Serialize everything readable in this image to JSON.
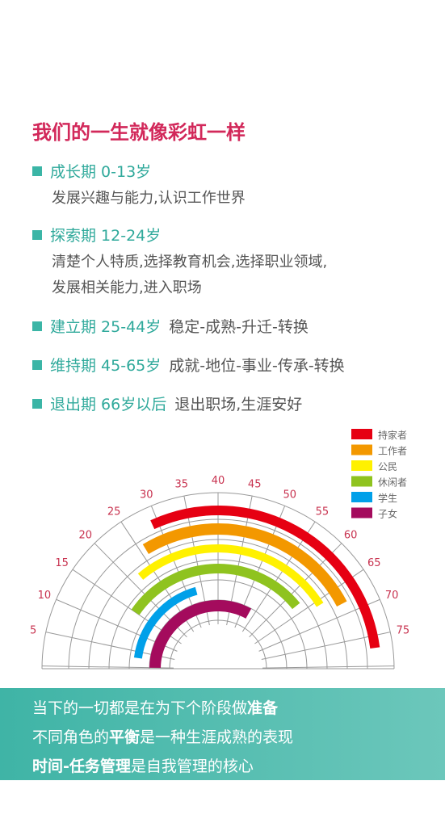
{
  "title": "我们的一生就像彩虹一样",
  "stages": [
    {
      "name": "成长期 0-13岁",
      "lines": [
        "发展兴趣与能力,认识工作世界"
      ]
    },
    {
      "name": "探索期 12-24岁",
      "lines": [
        "清楚个人特质,选择教育机会,选择职业领域,",
        "发展相关能力,进入职场"
      ]
    },
    {
      "name": "建立期 25-44岁",
      "note": "稳定-成熟-升迁-转换"
    },
    {
      "name": "维持期 45-65岁",
      "note": "成就-地位-事业-传承-转换"
    },
    {
      "name": "退出期 66岁以后",
      "note": "退出职场,生涯安好"
    }
  ],
  "legend": [
    {
      "label": "持家者",
      "color": "#e60012"
    },
    {
      "label": "工作者",
      "color": "#f39800"
    },
    {
      "label": "公民",
      "color": "#fff100"
    },
    {
      "label": "休闲者",
      "color": "#8fc31f"
    },
    {
      "label": "学生",
      "color": "#00a0e9"
    },
    {
      "label": "子女",
      "color": "#a40b5d"
    }
  ],
  "ages": [
    5,
    10,
    15,
    20,
    25,
    30,
    35,
    40,
    45,
    50,
    55,
    60,
    65,
    70,
    75
  ],
  "footer": [
    [
      {
        "text": "当下的一切都是在为下个阶段做",
        "bold": false
      },
      {
        "text": "准备",
        "bold": true
      }
    ],
    [
      {
        "text": "不同角色的",
        "bold": false
      },
      {
        "text": "平衡",
        "bold": true
      },
      {
        "text": "是一种生涯成熟的表现",
        "bold": false
      }
    ],
    [
      {
        "text": "时间-任务管理",
        "bold": true
      },
      {
        "text": "是自我管理的核心",
        "bold": false
      }
    ]
  ]
}
